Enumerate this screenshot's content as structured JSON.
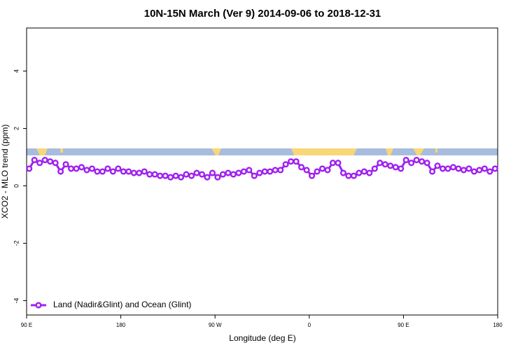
{
  "chart_data": {
    "type": "line",
    "title": "10N-15N March (Ver 9)   2014-09-06 to 2018-12-31",
    "xlabel": "Longitude (deg E)",
    "ylabel": "XCO2 - MLO trend (ppm)",
    "xlim": [
      90,
      540
    ],
    "ylim": [
      -4.5,
      5.5
    ],
    "xticks": [
      {
        "value": 90,
        "label": "90 E"
      },
      180,
      {
        "value": 270,
        "label": "90 W"
      },
      {
        "value": 360,
        "label": "0"
      },
      {
        "value": 450,
        "label": "90 E"
      },
      {
        "value": 540,
        "label": "180"
      }
    ],
    "yticks": [
      -4,
      -2,
      0,
      2,
      4
    ],
    "legend": "bottom-left",
    "x": [
      92.5,
      97.5,
      102.5,
      107.5,
      112.5,
      117.5,
      122.5,
      127.5,
      132.5,
      137.5,
      142.5,
      147.5,
      152.5,
      157.5,
      162.5,
      167.5,
      172.5,
      177.5,
      182.5,
      187.5,
      192.5,
      197.5,
      202.5,
      207.5,
      212.5,
      217.5,
      222.5,
      227.5,
      232.5,
      237.5,
      242.5,
      247.5,
      252.5,
      257.5,
      262.5,
      267.5,
      272.5,
      277.5,
      282.5,
      287.5,
      292.5,
      297.5,
      302.5,
      307.5,
      312.5,
      317.5,
      322.5,
      327.5,
      332.5,
      337.5,
      342.5,
      347.5,
      352.5,
      357.5,
      362.5,
      367.5,
      372.5,
      377.5,
      382.5,
      387.5,
      392.5,
      397.5,
      402.5,
      407.5,
      412.5,
      417.5,
      422.5,
      427.5,
      432.5,
      437.5,
      442.5,
      447.5,
      452.5,
      457.5,
      462.5,
      467.5,
      472.5,
      477.5,
      482.5,
      487.5,
      492.5,
      497.5,
      502.5,
      507.5,
      512.5,
      517.5,
      522.5,
      527.5,
      532.5,
      537.5
    ],
    "series": [
      {
        "name": "Land (Nadir&Glint) and Ocean (Glint)",
        "color": "#a020f0",
        "values": [
          0.6,
          0.9,
          0.8,
          0.9,
          0.85,
          0.8,
          0.5,
          0.75,
          0.6,
          0.6,
          0.65,
          0.55,
          0.6,
          0.5,
          0.5,
          0.6,
          0.5,
          0.6,
          0.5,
          0.5,
          0.45,
          0.45,
          0.5,
          0.4,
          0.4,
          0.35,
          0.35,
          0.3,
          0.35,
          0.3,
          0.4,
          0.35,
          0.45,
          0.4,
          0.3,
          0.45,
          0.3,
          0.4,
          0.45,
          0.4,
          0.45,
          0.5,
          0.55,
          0.35,
          0.45,
          0.5,
          0.5,
          0.55,
          0.55,
          0.75,
          0.85,
          0.85,
          0.65,
          0.55,
          0.35,
          0.5,
          0.6,
          0.55,
          0.8,
          0.8,
          0.45,
          0.35,
          0.35,
          0.45,
          0.5,
          0.45,
          0.6,
          0.8,
          0.75,
          0.7,
          0.65,
          0.6,
          0.9,
          0.8,
          0.9,
          0.85,
          0.8,
          0.5,
          0.7,
          0.6,
          0.6,
          0.65,
          0.6,
          0.55,
          0.6,
          0.5,
          0.55,
          0.6,
          0.5,
          0.6
        ]
      }
    ]
  }
}
